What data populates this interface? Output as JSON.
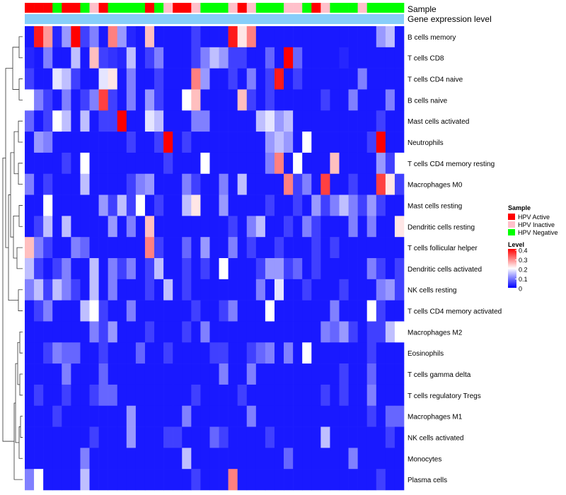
{
  "chart_data": {
    "type": "heatmap",
    "annotations": {
      "sample_label": "Sample",
      "expression_label": "Gene expression level"
    },
    "rows": [
      "B cells memory",
      "T cells CD8",
      "T cells CD4 naive",
      "B cells naive",
      "Mast cells activated",
      "Neutrophils",
      "T cells CD4 memory resting",
      "Macrophages M0",
      "Mast cells resting",
      "Dendritic cells resting",
      "T cells follicular helper",
      "Dendritic cells activated",
      "NK cells resting",
      "T cells CD4 memory activated",
      "Macrophages M2",
      "Eosinophils",
      "T cells gamma delta",
      "T cells regulatory  Tregs",
      "Macrophages M1",
      "NK cells activated",
      "Monocytes",
      "Plasma cells"
    ],
    "samples": [
      "HPV Active",
      "HPV Active",
      "HPV Active",
      "HPV Negative",
      "HPV Active",
      "HPV Active",
      "HPV Negative",
      "HPV Inactive",
      "HPV Active",
      "HPV Negative",
      "HPV Negative",
      "HPV Negative",
      "HPV Negative",
      "HPV Active",
      "HPV Negative",
      "HPV Inactive",
      "HPV Active",
      "HPV Active",
      "HPV Inactive",
      "HPV Negative",
      "HPV Negative",
      "HPV Negative",
      "HPV Inactive",
      "HPV Active",
      "HPV Inactive",
      "HPV Negative",
      "HPV Negative",
      "HPV Negative",
      "HPV Inactive",
      "HPV Inactive",
      "HPV Negative",
      "HPV Active",
      "HPV Inactive",
      "HPV Negative",
      "HPV Negative",
      "HPV Negative",
      "HPV Inactive",
      "HPV Negative",
      "HPV Negative",
      "HPV Negative",
      "HPV Negative"
    ],
    "values": [
      [
        0.02,
        0.38,
        0.28,
        0.03,
        0.12,
        0.4,
        0.05,
        0.1,
        0.02,
        0.3,
        0.12,
        0.03,
        0.02,
        0.25,
        0.02,
        0.02,
        0.02,
        0.02,
        0.05,
        0.02,
        0.02,
        0.02,
        0.38,
        0.22,
        0.3,
        0.02,
        0.02,
        0.02,
        0.02,
        0.02,
        0.02,
        0.02,
        0.02,
        0.02,
        0.02,
        0.02,
        0.02,
        0.02,
        0.12,
        0.15,
        0.02
      ],
      [
        0.03,
        0.02,
        0.1,
        0.02,
        0.02,
        0.15,
        0.02,
        0.25,
        0.05,
        0.04,
        0.03,
        0.15,
        0.02,
        0.05,
        0.1,
        0.02,
        0.02,
        0.02,
        0.05,
        0.1,
        0.15,
        0.12,
        0.05,
        0.05,
        0.02,
        0.02,
        0.08,
        0.02,
        0.4,
        0.08,
        0.02,
        0.02,
        0.02,
        0.02,
        0.03,
        0.02,
        0.02,
        0.02,
        0.02,
        0.02,
        0.02
      ],
      [
        0.05,
        0.02,
        0.02,
        0.18,
        0.15,
        0.05,
        0.02,
        0.02,
        0.18,
        0.22,
        0.02,
        0.1,
        0.02,
        0.02,
        0.05,
        0.02,
        0.02,
        0.02,
        0.3,
        0.12,
        0.02,
        0.02,
        0.05,
        0.02,
        0.1,
        0.02,
        0.05,
        0.38,
        0.02,
        0.05,
        0.02,
        0.02,
        0.02,
        0.02,
        0.02,
        0.02,
        0.1,
        0.02,
        0.02,
        0.02,
        0.02
      ],
      [
        0.2,
        0.1,
        0.05,
        0.02,
        0.1,
        0.02,
        0.05,
        0.1,
        0.35,
        0.05,
        0.02,
        0.1,
        0.02,
        0.12,
        0.05,
        0.02,
        0.02,
        0.2,
        0.25,
        0.02,
        0.02,
        0.02,
        0.02,
        0.25,
        0.05,
        0.02,
        0.05,
        0.02,
        0.02,
        0.02,
        0.02,
        0.02,
        0.05,
        0.02,
        0.02,
        0.1,
        0.02,
        0.02,
        0.02,
        0.1,
        0.02
      ],
      [
        0.08,
        0.02,
        0.05,
        0.2,
        0.15,
        0.02,
        0.15,
        0.02,
        0.05,
        0.05,
        0.4,
        0.02,
        0.02,
        0.18,
        0.15,
        0.02,
        0.02,
        0.02,
        0.1,
        0.1,
        0.02,
        0.02,
        0.02,
        0.02,
        0.02,
        0.15,
        0.18,
        0.12,
        0.15,
        0.02,
        0.02,
        0.02,
        0.02,
        0.02,
        0.02,
        0.02,
        0.02,
        0.02,
        0.05,
        0.02,
        0.02
      ],
      [
        0.02,
        0.12,
        0.1,
        0.02,
        0.02,
        0.02,
        0.02,
        0.02,
        0.02,
        0.02,
        0.02,
        0.05,
        0.02,
        0.02,
        0.05,
        0.4,
        0.02,
        0.05,
        0.02,
        0.02,
        0.02,
        0.02,
        0.02,
        0.02,
        0.02,
        0.02,
        0.12,
        0.15,
        0.12,
        0.02,
        0.2,
        0.02,
        0.02,
        0.02,
        0.02,
        0.02,
        0.02,
        0.05,
        0.4,
        0.02,
        0.02
      ],
      [
        0.02,
        0.02,
        0.02,
        0.02,
        0.05,
        0.02,
        0.2,
        0.02,
        0.02,
        0.02,
        0.02,
        0.02,
        0.02,
        0.02,
        0.02,
        0.05,
        0.02,
        0.02,
        0.02,
        0.2,
        0.02,
        0.02,
        0.02,
        0.02,
        0.02,
        0.02,
        0.1,
        0.3,
        0.02,
        0.2,
        0.02,
        0.02,
        0.02,
        0.25,
        0.02,
        0.02,
        0.02,
        0.02,
        0.12,
        0.05,
        0.2
      ],
      [
        0.1,
        0.02,
        0.05,
        0.02,
        0.02,
        0.02,
        0.15,
        0.02,
        0.02,
        0.02,
        0.02,
        0.05,
        0.1,
        0.12,
        0.02,
        0.02,
        0.02,
        0.1,
        0.05,
        0.02,
        0.02,
        0.1,
        0.02,
        0.15,
        0.02,
        0.02,
        0.02,
        0.02,
        0.3,
        0.05,
        0.1,
        0.02,
        0.35,
        0.02,
        0.02,
        0.05,
        0.02,
        0.02,
        0.35,
        0.22,
        0.05
      ],
      [
        0.02,
        0.02,
        0.2,
        0.02,
        0.02,
        0.02,
        0.02,
        0.02,
        0.12,
        0.05,
        0.15,
        0.05,
        0.2,
        0.02,
        0.05,
        0.02,
        0.02,
        0.15,
        0.22,
        0.02,
        0.02,
        0.12,
        0.02,
        0.02,
        0.02,
        0.02,
        0.05,
        0.02,
        0.02,
        0.05,
        0.02,
        0.12,
        0.05,
        0.1,
        0.15,
        0.1,
        0.05,
        0.12,
        0.05,
        0.02,
        0.02
      ],
      [
        0.02,
        0.05,
        0.15,
        0.02,
        0.15,
        0.02,
        0.02,
        0.02,
        0.02,
        0.12,
        0.02,
        0.1,
        0.02,
        0.25,
        0.02,
        0.02,
        0.02,
        0.02,
        0.02,
        0.02,
        0.02,
        0.02,
        0.05,
        0.02,
        0.1,
        0.15,
        0.02,
        0.02,
        0.05,
        0.02,
        0.1,
        0.05,
        0.02,
        0.02,
        0.02,
        0.1,
        0.02,
        0.1,
        0.02,
        0.02,
        0.22
      ],
      [
        0.25,
        0.1,
        0.05,
        0.02,
        0.02,
        0.1,
        0.08,
        0.02,
        0.02,
        0.02,
        0.02,
        0.02,
        0.02,
        0.3,
        0.05,
        0.02,
        0.02,
        0.08,
        0.02,
        0.12,
        0.02,
        0.02,
        0.1,
        0.02,
        0.05,
        0.02,
        0.02,
        0.05,
        0.02,
        0.02,
        0.02,
        0.05,
        0.02,
        0.05,
        0.02,
        0.02,
        0.02,
        0.02,
        0.02,
        0.02,
        0.02
      ],
      [
        0.15,
        0.05,
        0.02,
        0.05,
        0.1,
        0.02,
        0.02,
        0.15,
        0.02,
        0.1,
        0.05,
        0.1,
        0.02,
        0.05,
        0.15,
        0.02,
        0.02,
        0.05,
        0.02,
        0.05,
        0.02,
        0.2,
        0.02,
        0.02,
        0.02,
        0.05,
        0.12,
        0.12,
        0.05,
        0.08,
        0.02,
        0.05,
        0.02,
        0.02,
        0.02,
        0.02,
        0.02,
        0.1,
        0.05,
        0.02,
        0.05
      ],
      [
        0.1,
        0.15,
        0.05,
        0.15,
        0.1,
        0.05,
        0.02,
        0.15,
        0.02,
        0.1,
        0.02,
        0.02,
        0.02,
        0.05,
        0.02,
        0.15,
        0.02,
        0.05,
        0.02,
        0.02,
        0.02,
        0.02,
        0.02,
        0.02,
        0.02,
        0.1,
        0.02,
        0.18,
        0.02,
        0.02,
        0.05,
        0.02,
        0.02,
        0.02,
        0.05,
        0.02,
        0.02,
        0.02,
        0.1,
        0.12,
        0.05
      ],
      [
        0.02,
        0.05,
        0.1,
        0.02,
        0.02,
        0.02,
        0.15,
        0.2,
        0.05,
        0.02,
        0.02,
        0.1,
        0.02,
        0.02,
        0.02,
        0.02,
        0.02,
        0.02,
        0.05,
        0.02,
        0.02,
        0.05,
        0.1,
        0.02,
        0.02,
        0.02,
        0.2,
        0.02,
        0.02,
        0.02,
        0.02,
        0.02,
        0.02,
        0.1,
        0.02,
        0.02,
        0.02,
        0.2,
        0.05,
        0.02,
        0.02
      ],
      [
        0.02,
        0.02,
        0.02,
        0.02,
        0.02,
        0.02,
        0.02,
        0.1,
        0.05,
        0.12,
        0.02,
        0.02,
        0.02,
        0.05,
        0.02,
        0.02,
        0.02,
        0.05,
        0.02,
        0.1,
        0.02,
        0.02,
        0.02,
        0.02,
        0.02,
        0.02,
        0.02,
        0.02,
        0.02,
        0.02,
        0.02,
        0.02,
        0.1,
        0.08,
        0.12,
        0.05,
        0.02,
        0.05,
        0.05,
        0.15,
        0.2
      ],
      [
        0.02,
        0.02,
        0.05,
        0.1,
        0.08,
        0.08,
        0.02,
        0.02,
        0.05,
        0.02,
        0.02,
        0.02,
        0.08,
        0.02,
        0.02,
        0.05,
        0.02,
        0.02,
        0.02,
        0.02,
        0.05,
        0.05,
        0.02,
        0.02,
        0.05,
        0.08,
        0.1,
        0.02,
        0.1,
        0.02,
        0.2,
        0.02,
        0.02,
        0.02,
        0.02,
        0.02,
        0.02,
        0.05,
        0.02,
        0.02,
        0.02
      ],
      [
        0.02,
        0.02,
        0.02,
        0.02,
        0.1,
        0.02,
        0.02,
        0.02,
        0.08,
        0.02,
        0.02,
        0.02,
        0.02,
        0.02,
        0.02,
        0.02,
        0.02,
        0.02,
        0.02,
        0.02,
        0.02,
        0.1,
        0.02,
        0.02,
        0.1,
        0.02,
        0.02,
        0.02,
        0.02,
        0.02,
        0.02,
        0.02,
        0.02,
        0.02,
        0.05,
        0.02,
        0.02,
        0.08,
        0.02,
        0.02,
        0.02
      ],
      [
        0.02,
        0.05,
        0.02,
        0.02,
        0.05,
        0.02,
        0.02,
        0.05,
        0.08,
        0.08,
        0.02,
        0.02,
        0.02,
        0.02,
        0.02,
        0.02,
        0.02,
        0.02,
        0.05,
        0.02,
        0.02,
        0.02,
        0.02,
        0.05,
        0.02,
        0.02,
        0.02,
        0.02,
        0.02,
        0.02,
        0.02,
        0.02,
        0.05,
        0.02,
        0.05,
        0.02,
        0.02,
        0.1,
        0.02,
        0.02,
        0.02
      ],
      [
        0.02,
        0.02,
        0.02,
        0.05,
        0.02,
        0.02,
        0.02,
        0.02,
        0.02,
        0.02,
        0.02,
        0.12,
        0.02,
        0.02,
        0.02,
        0.02,
        0.02,
        0.1,
        0.02,
        0.02,
        0.02,
        0.02,
        0.02,
        0.02,
        0.1,
        0.02,
        0.02,
        0.02,
        0.02,
        0.02,
        0.02,
        0.02,
        0.02,
        0.02,
        0.02,
        0.02,
        0.02,
        0.05,
        0.02,
        0.08,
        0.08
      ],
      [
        0.02,
        0.02,
        0.02,
        0.02,
        0.02,
        0.02,
        0.02,
        0.05,
        0.02,
        0.02,
        0.02,
        0.12,
        0.02,
        0.02,
        0.02,
        0.05,
        0.05,
        0.02,
        0.02,
        0.02,
        0.08,
        0.05,
        0.02,
        0.02,
        0.02,
        0.02,
        0.05,
        0.02,
        0.02,
        0.02,
        0.02,
        0.02,
        0.15,
        0.02,
        0.02,
        0.02,
        0.02,
        0.02,
        0.02,
        0.05,
        0.02
      ],
      [
        0.02,
        0.02,
        0.02,
        0.02,
        0.02,
        0.02,
        0.1,
        0.02,
        0.02,
        0.02,
        0.02,
        0.02,
        0.02,
        0.02,
        0.02,
        0.02,
        0.02,
        0.15,
        0.02,
        0.02,
        0.02,
        0.02,
        0.02,
        0.02,
        0.02,
        0.02,
        0.02,
        0.02,
        0.08,
        0.02,
        0.02,
        0.02,
        0.02,
        0.02,
        0.02,
        0.1,
        0.02,
        0.02,
        0.02,
        0.02,
        0.02
      ],
      [
        0.1,
        0.2,
        0.02,
        0.02,
        0.02,
        0.02,
        0.15,
        0.02,
        0.02,
        0.02,
        0.02,
        0.02,
        0.02,
        0.02,
        0.02,
        0.02,
        0.02,
        0.02,
        0.05,
        0.02,
        0.02,
        0.02,
        0.3,
        0.02,
        0.02,
        0.02,
        0.02,
        0.02,
        0.02,
        0.02,
        0.02,
        0.02,
        0.02,
        0.02,
        0.02,
        0.02,
        0.02,
        0.02,
        0.05,
        0.02,
        0.02
      ]
    ],
    "legend": {
      "sample_title": "Sample",
      "sample_entries": [
        {
          "label": "HPV Active",
          "color": "#FF0000"
        },
        {
          "label": "HPV Inactive",
          "color": "#FFC0CB"
        },
        {
          "label": "HPV Negative",
          "color": "#00FF00"
        }
      ],
      "level_title": "Level",
      "level_ticks": [
        "0.4",
        "0.3",
        "0.2",
        "0.1",
        "0"
      ],
      "level_range": [
        0,
        0.4
      ]
    },
    "colors": {
      "low": "#0000FF",
      "mid": "#FFFFFF",
      "high": "#FF0000",
      "expression_bar": "#87CEFA"
    }
  }
}
